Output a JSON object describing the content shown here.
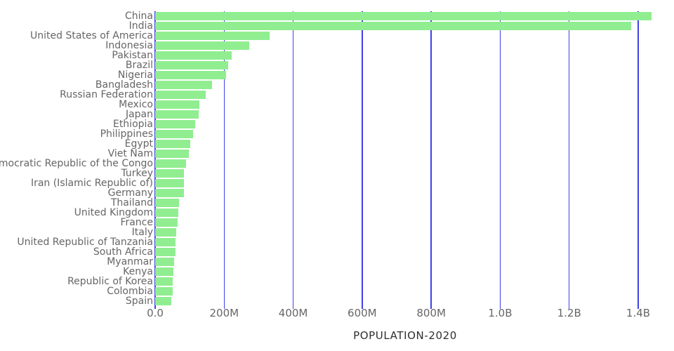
{
  "chart_data": {
    "type": "bar",
    "orientation": "horizontal",
    "title": "",
    "xlabel": "POPULATION-2020",
    "ylabel": "",
    "categories": [
      "China",
      "India",
      "United States of America",
      "Indonesia",
      "Pakistan",
      "Brazil",
      "Nigeria",
      "Bangladesh",
      "Russian Federation",
      "Mexico",
      "Japan",
      "Ethiopia",
      "Philippines",
      "Egypt",
      "Viet Nam",
      "Democratic Republic of the Congo",
      "Turkey",
      "Iran (Islamic Republic of)",
      "Germany",
      "Thailand",
      "United Kingdom",
      "France",
      "Italy",
      "United Republic of Tanzania",
      "South Africa",
      "Myanmar",
      "Kenya",
      "Republic of Korea",
      "Colombia",
      "Spain"
    ],
    "values_millions": [
      1439.3,
      1380.0,
      331.0,
      273.5,
      220.9,
      212.6,
      206.1,
      164.7,
      145.9,
      128.9,
      126.5,
      115.0,
      109.6,
      102.3,
      97.3,
      89.6,
      84.3,
      84.0,
      83.8,
      69.8,
      67.9,
      65.3,
      60.5,
      59.7,
      59.3,
      54.4,
      53.8,
      51.3,
      50.9,
      46.8
    ],
    "x_ticks": {
      "labels": [
        "0.0",
        "200M",
        "400M",
        "600M",
        "800M",
        "1.0B",
        "1.2B",
        "1.4B"
      ],
      "values_millions": [
        0,
        200,
        400,
        600,
        800,
        1000,
        1200,
        1400
      ]
    },
    "xlim_millions": [
      0,
      1449
    ],
    "grid": "vertical",
    "legend": "none",
    "colors": {
      "bar": "#90EE90",
      "gridline": "#4040E6",
      "label_text": "#666666",
      "tick_text": "#666666",
      "axis_title_text": "#2F2F2F",
      "background": "#FFFFFF"
    }
  }
}
